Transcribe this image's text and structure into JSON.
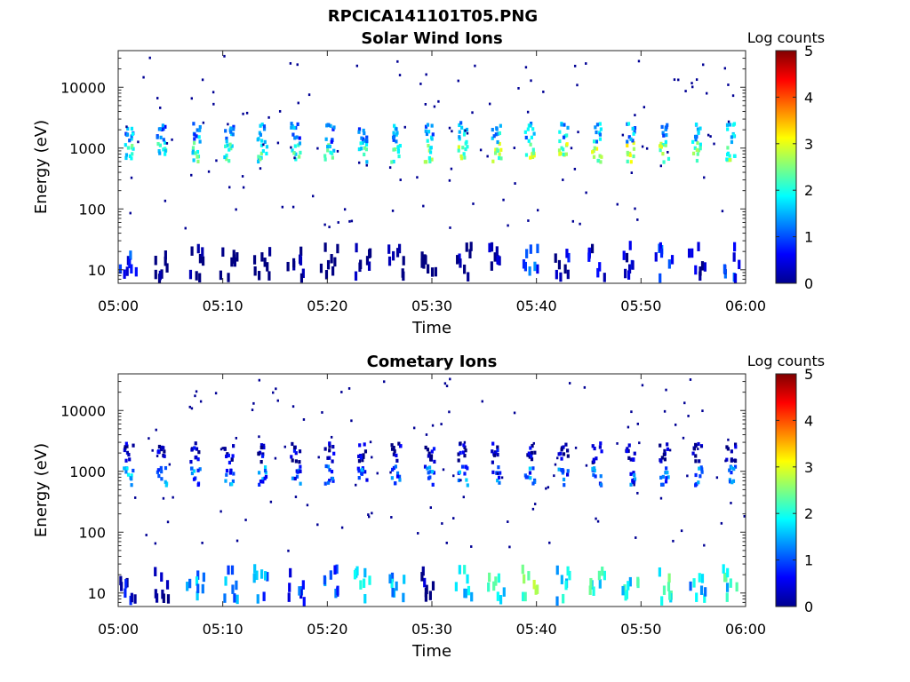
{
  "figure": {
    "title": "RPCICA141101T05.PNG"
  },
  "chart_data": [
    {
      "type": "heatmap",
      "title": "Solar Wind Ions",
      "xlabel": "Time",
      "ylabel": "Energy (eV)",
      "x_range": [
        "05:00",
        "06:00"
      ],
      "x_ticks": [
        "05:00",
        "05:10",
        "05:20",
        "05:30",
        "05:40",
        "05:50",
        "06:00"
      ],
      "y_scale": "log",
      "ylim": [
        6,
        40000
      ],
      "y_ticks": [
        10,
        100,
        1000,
        10000
      ],
      "y_tick_labels": [
        "10",
        "100",
        "1000",
        "10000"
      ],
      "colorbar": {
        "label": "Log counts",
        "range": [
          0,
          5
        ],
        "ticks": [
          "0",
          "1",
          "2",
          "3",
          "4",
          "5"
        ],
        "colormap": "jet"
      },
      "scan_times_min": [
        1.0,
        4.2,
        7.4,
        10.6,
        13.8,
        17.0,
        20.2,
        23.4,
        26.6,
        29.8,
        33.0,
        36.2,
        39.4,
        42.6,
        45.8,
        49.0,
        52.2,
        55.4,
        58.6
      ],
      "bands": [
        {
          "energy_eV": 850,
          "log_counts": [
            2.6,
            2.4,
            2.7,
            2.6,
            2.6,
            2.6,
            2.6,
            2.7,
            2.9,
            2.8,
            3.1,
            3.1,
            3.1,
            3.2,
            3.3,
            3.3,
            3.0,
            3.0,
            2.9
          ]
        },
        {
          "energy_eV": 1800,
          "log_counts": [
            1.9,
            1.8,
            1.9,
            1.8,
            1.8,
            1.8,
            1.7,
            1.9,
            1.9,
            2.0,
            2.0,
            2.1,
            2.0,
            2.1,
            2.1,
            2.1,
            2.0,
            2.1,
            2.0
          ]
        },
        {
          "energy_eV": 15,
          "log_counts": [
            1.2,
            0.4,
            0.5,
            0.4,
            0.3,
            0.3,
            0.3,
            0.5,
            0.3,
            0.2,
            0.6,
            0.8,
            1.5,
            0.8,
            0.7,
            0.9,
            1.3,
            0.8,
            1.3
          ]
        }
      ],
      "background_counts": "sparse single counts (log counts ~0) across 50 eV - 40 keV",
      "grid": false
    },
    {
      "type": "heatmap",
      "title": "Cometary Ions",
      "xlabel": "Time",
      "ylabel": "Energy (eV)",
      "x_range": [
        "05:00",
        "06:00"
      ],
      "x_ticks": [
        "05:00",
        "05:10",
        "05:20",
        "05:30",
        "05:40",
        "05:50",
        "06:00"
      ],
      "y_scale": "log",
      "ylim": [
        6,
        40000
      ],
      "y_ticks": [
        10,
        100,
        1000,
        10000
      ],
      "y_tick_labels": [
        "10",
        "100",
        "1000",
        "10000"
      ],
      "colorbar": {
        "label": "Log counts",
        "range": [
          0,
          5
        ],
        "ticks": [
          "0",
          "1",
          "2",
          "3",
          "4",
          "5"
        ],
        "colormap": "jet"
      },
      "scan_times_min": [
        1.0,
        4.2,
        7.4,
        10.6,
        13.8,
        17.0,
        20.2,
        23.4,
        26.6,
        29.8,
        33.0,
        36.2,
        39.4,
        42.6,
        45.8,
        49.0,
        52.2,
        55.4,
        58.6
      ],
      "bands": [
        {
          "energy_eV": 850,
          "log_counts": [
            1.9,
            1.8,
            1.8,
            1.7,
            1.7,
            1.5,
            1.6,
            1.7,
            1.8,
            1.6,
            1.8,
            1.7,
            1.7,
            1.6,
            1.6,
            1.6,
            1.8,
            1.6,
            1.7
          ]
        },
        {
          "energy_eV": 2000,
          "log_counts": [
            0.9,
            0.8,
            0.8,
            0.8,
            0.8,
            0.8,
            0.8,
            0.8,
            0.8,
            0.8,
            0.9,
            0.8,
            0.8,
            0.8,
            0.8,
            0.8,
            0.8,
            0.8,
            0.9
          ]
        },
        {
          "energy_eV": 15,
          "log_counts": [
            1.0,
            0.4,
            1.9,
            1.8,
            1.7,
            1.4,
            1.5,
            2.4,
            2.0,
            0.5,
            2.3,
            2.4,
            2.9,
            2.2,
            2.5,
            2.3,
            2.6,
            2.0,
            2.4
          ]
        }
      ],
      "background_counts": "sparse single counts (log counts ~0) across 50 eV - 30 keV",
      "grid": false
    }
  ]
}
